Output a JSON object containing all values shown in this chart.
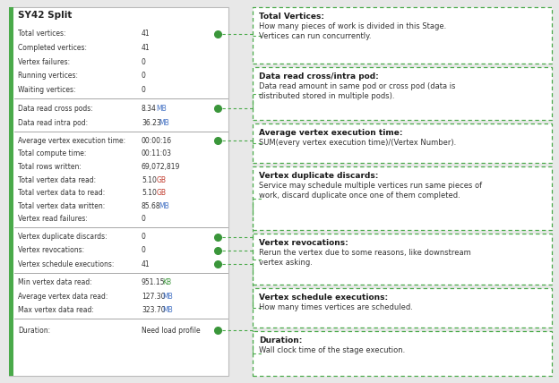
{
  "title": "SY42 Split",
  "bg_color": "#e8e8e8",
  "left_panel_bg": "#ffffff",
  "left_border_color": "#4aaa4a",
  "dot_color": "#3a963a",
  "dashed_line_color": "#4aaa4a",
  "div_color": "#999999",
  "sections": [
    {
      "rows": [
        {
          "label": "Total vertices:",
          "value": "41",
          "unit": "",
          "unit_color": null,
          "dot": true
        },
        {
          "label": "Completed vertices:",
          "value": "41",
          "unit": "",
          "unit_color": null,
          "dot": false
        },
        {
          "label": "Vertex failures:",
          "value": "0",
          "unit": "",
          "unit_color": null,
          "dot": false
        },
        {
          "label": "Running vertices:",
          "value": "0",
          "unit": "",
          "unit_color": null,
          "dot": false
        },
        {
          "label": "Waiting vertices:",
          "value": "0",
          "unit": "",
          "unit_color": null,
          "dot": false
        }
      ]
    },
    {
      "rows": [
        {
          "label": "Data read cross pods:",
          "value": "8.34",
          "unit": "MB",
          "unit_color": "#4472c4",
          "dot": true
        },
        {
          "label": "Data read intra pod:",
          "value": "36.23",
          "unit": "MB",
          "unit_color": "#4472c4",
          "dot": false
        }
      ]
    },
    {
      "rows": [
        {
          "label": "Average vertex execution time:",
          "value": "00:00:16",
          "unit": "",
          "unit_color": null,
          "dot": true
        },
        {
          "label": "Total compute time:",
          "value": "00:11:03",
          "unit": "",
          "unit_color": null,
          "dot": false
        },
        {
          "label": "Total rows written:",
          "value": "69,072,819",
          "unit": "",
          "unit_color": null,
          "dot": false
        },
        {
          "label": "Total vertex data read:",
          "value": "5.10",
          "unit": "GB",
          "unit_color": "#c0392b",
          "dot": false
        },
        {
          "label": "Total vertex data to read:",
          "value": "5.10",
          "unit": "GB",
          "unit_color": "#c0392b",
          "dot": false
        },
        {
          "label": "Total vertex data written:",
          "value": "85.68",
          "unit": "MB",
          "unit_color": "#4472c4",
          "dot": false
        },
        {
          "label": "Vertex read failures:",
          "value": "0",
          "unit": "",
          "unit_color": null,
          "dot": false
        }
      ]
    },
    {
      "rows": [
        {
          "label": "Vertex duplicate discards:",
          "value": "0",
          "unit": "",
          "unit_color": null,
          "dot": true
        },
        {
          "label": "Vertex revocations:",
          "value": "0",
          "unit": "",
          "unit_color": null,
          "dot": true
        },
        {
          "label": "Vertex schedule executions:",
          "value": "41",
          "unit": "",
          "unit_color": null,
          "dot": true
        }
      ]
    },
    {
      "rows": [
        {
          "label": "Min vertex data read:",
          "value": "951.15",
          "unit": "KB",
          "unit_color": "#3a963a",
          "dot": false
        },
        {
          "label": "Average vertex data read:",
          "value": "127.30",
          "unit": "MB",
          "unit_color": "#4472c4",
          "dot": false
        },
        {
          "label": "Max vertex data read:",
          "value": "323.70",
          "unit": "MB",
          "unit_color": "#4472c4",
          "dot": false
        }
      ]
    },
    {
      "rows": [
        {
          "label": "Duration:",
          "value": "Need load profile",
          "unit": "",
          "unit_color": null,
          "dot": true
        }
      ]
    }
  ],
  "tooltips": [
    {
      "title": "Total Vertices:",
      "lines": [
        "How many pieces of work is divided in this Stage.",
        "Vertices can run concurrently."
      ],
      "dot_section": 0,
      "dot_row": 0
    },
    {
      "title": "Data read cross/intra pod:",
      "lines": [
        "Data read amount in same pod or cross pod (data is",
        "distributed stored in multiple pods)."
      ],
      "dot_section": 1,
      "dot_row": 0
    },
    {
      "title": "Average vertex execution time:",
      "lines": [
        "SUM(every vertex execution time)/(Vertex Number)."
      ],
      "dot_section": 2,
      "dot_row": 0
    },
    {
      "title": "Vertex duplicate discards:",
      "lines": [
        "Service may schedule multiple vertices run same pieces of",
        "work, discard duplicate once one of them completed."
      ],
      "dot_section": 3,
      "dot_row": 0
    },
    {
      "title": "Vertex revocations:",
      "lines": [
        "Rerun the vertex due to some reasons, like downstream",
        "vertex asking."
      ],
      "dot_section": 3,
      "dot_row": 1
    },
    {
      "title": "Vertex schedule executions:",
      "lines": [
        "How many times vertices are scheduled."
      ],
      "dot_section": 3,
      "dot_row": 2
    },
    {
      "title": "Duration:",
      "lines": [
        "Wall clock time of the stage execution."
      ],
      "dot_section": 5,
      "dot_row": 0
    }
  ]
}
